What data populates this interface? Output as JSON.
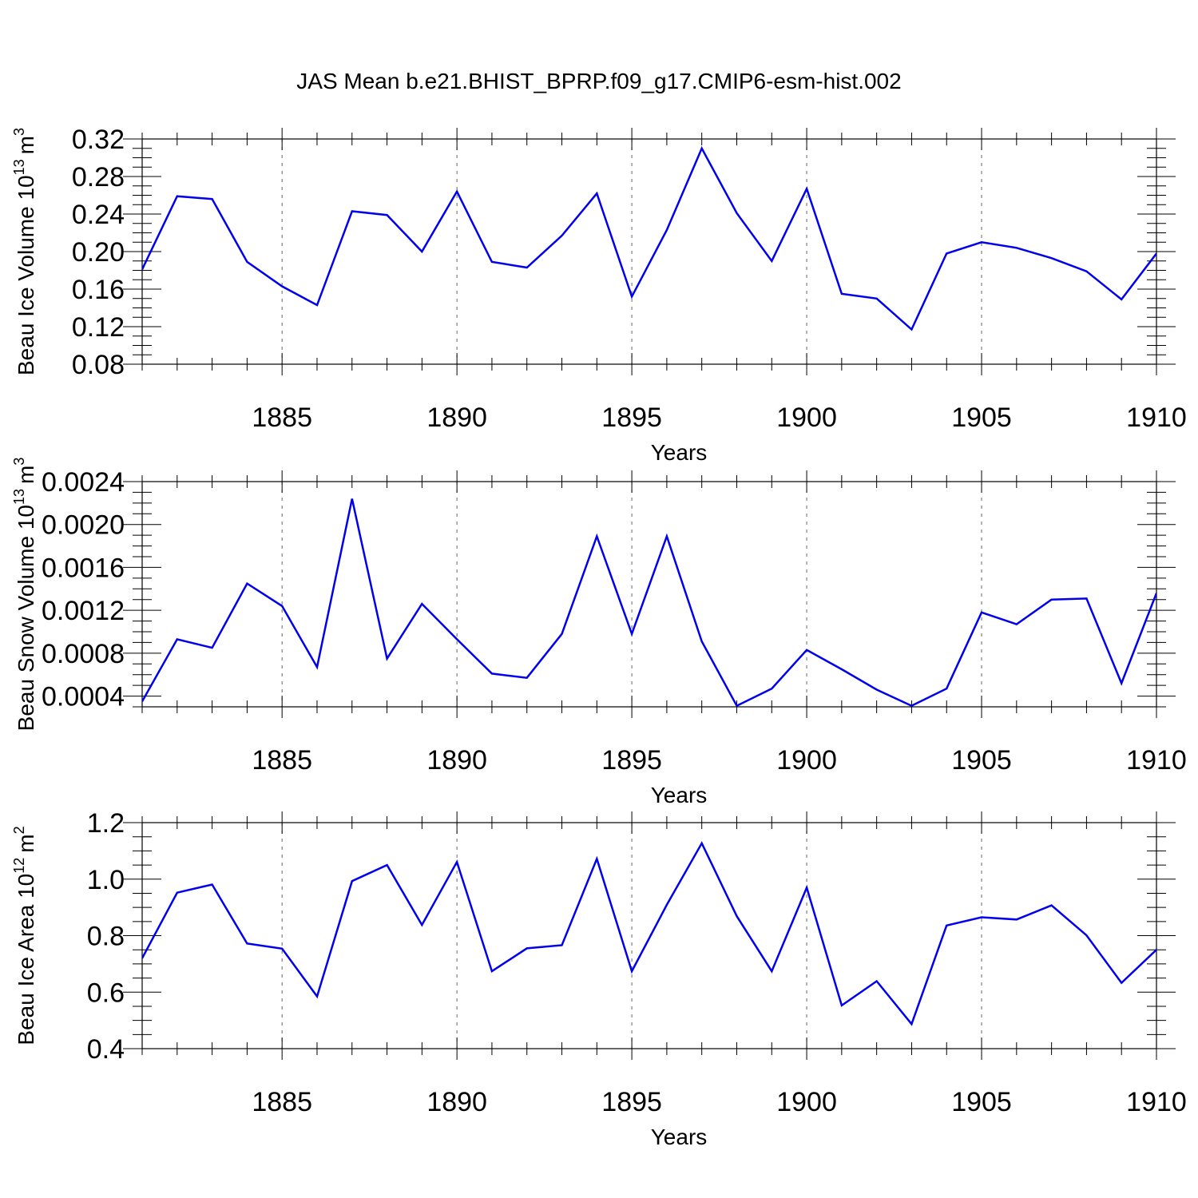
{
  "title": "JAS Mean b.e21.BHIST_BPRP.f09_g17.CMIP6-esm-hist.002",
  "colors": {
    "line": "#0000ee",
    "frame": "#000000",
    "grid": "#666666",
    "background": "#ffffff"
  },
  "chart_data": [
    {
      "type": "line",
      "title": "",
      "xlabel": "Years",
      "ylabel": "Beau Ice Volume 10",
      "ylabel_exponent": "13",
      "ylabel_unit": "m",
      "ylabel_unit_exponent": "3",
      "xlim": [
        1881,
        1910
      ],
      "ylim": [
        0.08,
        0.32
      ],
      "yticks": [
        "0.08",
        "0.12",
        "0.16",
        "0.20",
        "0.24",
        "0.28",
        "0.32"
      ],
      "xticks": [
        "1885",
        "1890",
        "1895",
        "1900",
        "1905",
        "1910"
      ],
      "grid": "vertical dashed at major x ticks",
      "series": [
        {
          "name": "Beau Ice Volume",
          "x": [
            1881,
            1882,
            1883,
            1884,
            1885,
            1886,
            1887,
            1888,
            1889,
            1890,
            1891,
            1892,
            1893,
            1894,
            1895,
            1896,
            1897,
            1898,
            1899,
            1900,
            1901,
            1902,
            1903,
            1904,
            1905,
            1906,
            1907,
            1908,
            1909,
            1910
          ],
          "values": [
            0.181,
            0.259,
            0.256,
            0.189,
            0.163,
            0.143,
            0.243,
            0.239,
            0.2,
            0.264,
            0.189,
            0.183,
            0.217,
            0.262,
            0.152,
            0.223,
            0.31,
            0.241,
            0.19,
            0.267,
            0.155,
            0.15,
            0.117,
            0.198,
            0.21,
            0.204,
            0.193,
            0.179,
            0.149,
            0.198
          ]
        }
      ]
    },
    {
      "type": "line",
      "title": "",
      "xlabel": "Years",
      "ylabel": "Beau Snow Volume 10",
      "ylabel_exponent": "13",
      "ylabel_unit": "m",
      "ylabel_unit_exponent": "3",
      "xlim": [
        1881,
        1910
      ],
      "ylim": [
        0.0003,
        0.0024
      ],
      "yticks": [
        "0.0004",
        "0.0008",
        "0.0012",
        "0.0016",
        "0.0020",
        "0.0024"
      ],
      "xticks": [
        "1885",
        "1890",
        "1895",
        "1900",
        "1905",
        "1910"
      ],
      "grid": "vertical dashed at major x ticks",
      "series": [
        {
          "name": "Beau Snow Volume",
          "x": [
            1881,
            1882,
            1883,
            1884,
            1885,
            1886,
            1887,
            1888,
            1889,
            1890,
            1891,
            1892,
            1893,
            1894,
            1895,
            1896,
            1897,
            1898,
            1899,
            1900,
            1901,
            1902,
            1903,
            1904,
            1905,
            1906,
            1907,
            1908,
            1909,
            1910
          ],
          "values": [
            0.00035,
            0.00093,
            0.00085,
            0.00145,
            0.00124,
            0.00067,
            0.00224,
            0.00075,
            0.00126,
            0.00093,
            0.00061,
            0.00057,
            0.00098,
            0.00189,
            0.00098,
            0.00189,
            0.00091,
            0.00031,
            0.00047,
            0.00083,
            0.00065,
            0.00046,
            0.00031,
            0.00047,
            0.00118,
            0.00107,
            0.0013,
            0.00131,
            0.00052,
            0.00136
          ]
        }
      ]
    },
    {
      "type": "line",
      "title": "",
      "xlabel": "Years",
      "ylabel": "Beau Ice Area 10",
      "ylabel_exponent": "12",
      "ylabel_unit": "m",
      "ylabel_unit_exponent": "2",
      "xlim": [
        1881,
        1910
      ],
      "ylim": [
        0.4,
        1.2
      ],
      "yticks": [
        "0.4",
        "0.6",
        "0.8",
        "1.0",
        "1.2"
      ],
      "xticks": [
        "1885",
        "1890",
        "1895",
        "1900",
        "1905",
        "1910"
      ],
      "grid": "vertical dashed at major x ticks",
      "series": [
        {
          "name": "Beau Ice Area",
          "x": [
            1881,
            1882,
            1883,
            1884,
            1885,
            1886,
            1887,
            1888,
            1889,
            1890,
            1891,
            1892,
            1893,
            1894,
            1895,
            1896,
            1897,
            1898,
            1899,
            1900,
            1901,
            1902,
            1903,
            1904,
            1905,
            1906,
            1907,
            1908,
            1909,
            1910
          ],
          "values": [
            0.72,
            0.952,
            0.981,
            0.772,
            0.754,
            0.585,
            0.993,
            1.05,
            0.838,
            1.061,
            0.674,
            0.755,
            0.766,
            1.072,
            0.674,
            0.909,
            1.127,
            0.869,
            0.674,
            0.97,
            0.553,
            0.639,
            0.487,
            0.836,
            0.865,
            0.857,
            0.907,
            0.801,
            0.633,
            0.75
          ]
        }
      ]
    }
  ]
}
